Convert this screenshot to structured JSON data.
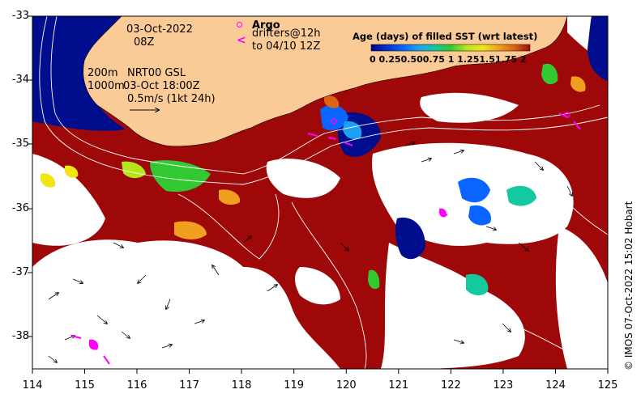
{
  "map": {
    "date": "03-Oct-2022",
    "hour": "08Z",
    "argo_label": "Argo",
    "drifters_line1": "drifters@12h",
    "drifters_line2": "to 04/10 12Z",
    "contour_200": "200m",
    "contour_1000": "1000m",
    "nrt_label": "NRT00 GSL",
    "nrt_time": "03-Oct 18:00Z",
    "velocity_scale": "0.5m/s (1kt 24h)",
    "credit": "© IMOS 07-Oct-2022 15:02 Hobart",
    "legend": {
      "title": "Age (days) of filled SST (wrt latest)",
      "ticks": "0 0.250.500.75  1  1.251.51.75  2",
      "colormap": [
        "#00008b",
        "#0032c8",
        "#0a64ff",
        "#1ea0f0",
        "#14c8a0",
        "#32c832",
        "#b4e61e",
        "#f0e614",
        "#f0a01e",
        "#dc6414",
        "#a00a0a"
      ]
    },
    "x_ticks": [
      "114",
      "115",
      "116",
      "117",
      "118",
      "119",
      "120",
      "121",
      "122",
      "123",
      "124",
      "125"
    ],
    "y_ticks": [
      "-33",
      "-34",
      "-35",
      "-36",
      "-37",
      "-38"
    ],
    "colors": {
      "land": "#fbcb97",
      "deep_water": "#000e8e",
      "old_sst": "#9e0808",
      "no_data": "#ffffff",
      "argo_marker": "#ff00ff"
    }
  }
}
